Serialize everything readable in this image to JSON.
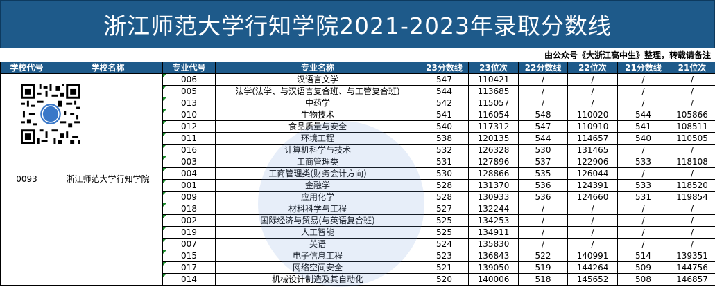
{
  "title": "浙江师范大学行知学院2021-2023年录取分数线",
  "source_note": "由公众号《大浙江高中生》整理，转载请备注",
  "columns": [
    "学校代号",
    "学校名称",
    "专业代号",
    "专业名称",
    "23分数线",
    "23位次",
    "22分数线",
    "22位次",
    "21分数线",
    "21位次"
  ],
  "school": {
    "code": "0093",
    "name": "浙江师范大学行知学院"
  },
  "qr_label": "大浙江高中生",
  "watermark_text": "大浙江高中生",
  "rows": [
    {
      "major_code": "006",
      "major": "汉语言文学",
      "s23": "547",
      "r23": "110421",
      "s22": "/",
      "r22": "/",
      "s21": "/",
      "r21": "/"
    },
    {
      "major_code": "005",
      "major": "法学(法学、与汉语言复合班、与工管复合班)",
      "s23": "544",
      "r23": "113685",
      "s22": "/",
      "r22": "/",
      "s21": "/",
      "r21": "/"
    },
    {
      "major_code": "013",
      "major": "中药学",
      "s23": "542",
      "r23": "115057",
      "s22": "/",
      "r22": "/",
      "s21": "/",
      "r21": "/"
    },
    {
      "major_code": "010",
      "major": "生物技术",
      "s23": "541",
      "r23": "116054",
      "s22": "548",
      "r22": "110020",
      "s21": "544",
      "r21": "105866"
    },
    {
      "major_code": "012",
      "major": "食品质量与安全",
      "s23": "540",
      "r23": "117312",
      "s22": "547",
      "r22": "110910",
      "s21": "541",
      "r21": "108511"
    },
    {
      "major_code": "011",
      "major": "环境工程",
      "s23": "538",
      "r23": "120135",
      "s22": "544",
      "r22": "114657",
      "s21": "540",
      "r21": "110505"
    },
    {
      "major_code": "016",
      "major": "计算机科学与技术",
      "s23": "532",
      "r23": "126328",
      "s22": "530",
      "r22": "131465",
      "s21": "/",
      "r21": "/"
    },
    {
      "major_code": "003",
      "major": "工商管理类",
      "s23": "531",
      "r23": "127896",
      "s22": "537",
      "r22": "122906",
      "s21": "533",
      "r21": "118108"
    },
    {
      "major_code": "004",
      "major": "工商管理类(财务会计方向)",
      "s23": "530",
      "r23": "128866",
      "s22": "535",
      "r22": "126044",
      "s21": "/",
      "r21": "/"
    },
    {
      "major_code": "001",
      "major": "金融学",
      "s23": "528",
      "r23": "131370",
      "s22": "536",
      "r22": "124391",
      "s21": "533",
      "r21": "118520"
    },
    {
      "major_code": "009",
      "major": "应用化学",
      "s23": "528",
      "r23": "130933",
      "s22": "536",
      "r22": "124660",
      "s21": "531",
      "r21": "119854"
    },
    {
      "major_code": "018",
      "major": "材料科学与工程",
      "s23": "527",
      "r23": "132244",
      "s22": "/",
      "r22": "/",
      "s21": "/",
      "r21": "/"
    },
    {
      "major_code": "002",
      "major": "国际经济与贸易(与英语复合班)",
      "s23": "525",
      "r23": "134253",
      "s22": "/",
      "r22": "/",
      "s21": "/",
      "r21": "/"
    },
    {
      "major_code": "019",
      "major": "人工智能",
      "s23": "525",
      "r23": "134911",
      "s22": "/",
      "r22": "/",
      "s21": "/",
      "r21": "/"
    },
    {
      "major_code": "007",
      "major": "英语",
      "s23": "524",
      "r23": "135830",
      "s22": "/",
      "r22": "/",
      "s21": "/",
      "r21": "/"
    },
    {
      "major_code": "015",
      "major": "电子信息工程",
      "s23": "523",
      "r23": "136843",
      "s22": "522",
      "r22": "140991",
      "s21": "514",
      "r21": "139351"
    },
    {
      "major_code": "017",
      "major": "网络空间安全",
      "s23": "521",
      "r23": "139050",
      "s22": "519",
      "r22": "144264",
      "s21": "509",
      "r21": "144756"
    },
    {
      "major_code": "014",
      "major": "机械设计制造及其自动化",
      "s23": "520",
      "r23": "140006",
      "s22": "518",
      "r22": "145652",
      "s21": "508",
      "r21": "146857"
    }
  ]
}
